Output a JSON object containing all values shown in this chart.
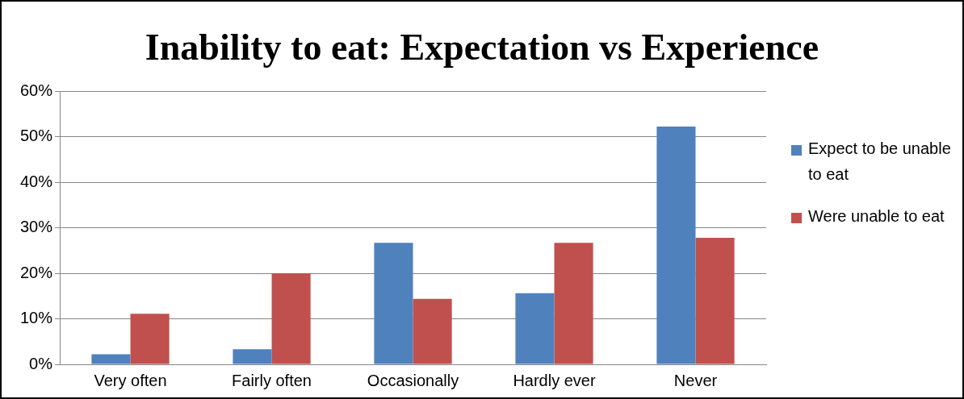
{
  "chart_data": {
    "type": "bar",
    "title": "Inability to eat: Expectation vs Experience",
    "categories": [
      "Very often",
      "Fairly often",
      "Occasionally",
      "Hardly ever",
      "Never"
    ],
    "series": [
      {
        "name": "Expect to be unable to eat",
        "color": "#4f81bd",
        "values": [
          2.2,
          3.3,
          26.7,
          15.6,
          52.2
        ]
      },
      {
        "name": "Were unable to eat",
        "color": "#c0504d",
        "values": [
          11.1,
          20,
          14.4,
          26.7,
          27.8
        ]
      }
    ],
    "ylim": [
      0,
      60
    ],
    "yticks": [
      {
        "value": 0,
        "label": "0%"
      },
      {
        "value": 10,
        "label": "10%"
      },
      {
        "value": 20,
        "label": "20%"
      },
      {
        "value": 30,
        "label": "30%"
      },
      {
        "value": 40,
        "label": "40%"
      },
      {
        "value": 50,
        "label": "50%"
      },
      {
        "value": 60,
        "label": "60%"
      }
    ],
    "grid": "y",
    "legend": "right"
  }
}
